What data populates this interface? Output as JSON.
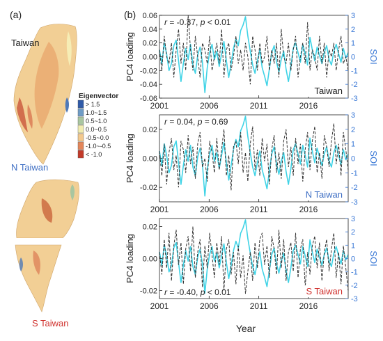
{
  "figure": {
    "panel_a_label": "(a)",
    "panel_b_label": "(b)",
    "legend_title": "Eigenvector",
    "legend_items": [
      {
        "label": "> 1.5",
        "color": "#2f5aa8"
      },
      {
        "label": "1.0~1.5",
        "color": "#6f9cc6"
      },
      {
        "label": "0.5~1.0",
        "color": "#a9c6a0"
      },
      {
        "label": "0.0~0.5",
        "color": "#f1ecb0"
      },
      {
        "label": "-0.5~0.0",
        "color": "#f3c98e"
      },
      {
        "label": "-1.0~-0.5",
        "color": "#e3865a"
      },
      {
        "label": "< -1.0",
        "color": "#c23a2a"
      }
    ],
    "maps": [
      {
        "label": "Taiwan",
        "label_color": "#222222"
      },
      {
        "label": "N Taiwan",
        "label_color": "#3f6fc4"
      },
      {
        "label": "S Taiwan",
        "label_color": "#d0312d"
      }
    ],
    "xlabel": "Year",
    "colors": {
      "pc4": "#333333",
      "soi": "#3fd3e6",
      "soi_axis": "#3a78d6"
    }
  },
  "chart_data": [
    {
      "type": "line",
      "title": "",
      "region_label": "Taiwan",
      "region_label_color": "#222222",
      "annotation": {
        "r": "r = -0.37, ",
        "p": "p < 0.01"
      },
      "ylabel": "PC4 loading",
      "y2label": "SOI",
      "ylim": [
        -0.06,
        0.06
      ],
      "yticks": [
        "0.06",
        "0.04",
        "0.02",
        "0.00",
        "-0.02",
        "-0.04",
        "-0.06"
      ],
      "y2lim": [
        -3,
        3
      ],
      "y2ticks": [
        "3",
        "2",
        "1",
        "0",
        "-1",
        "-2",
        "-3"
      ],
      "xticks": [
        "2001",
        "2006",
        "2011",
        "2016"
      ],
      "xlim": [
        2001,
        2020
      ],
      "series": [
        {
          "values": [
            0.01,
            -0.02,
            0.03,
            0.0,
            -0.01,
            0.02,
            -0.03,
            0.01,
            0.04,
            -0.01,
            0.02,
            -0.02,
            0.06,
            0.01,
            -0.02,
            0.03,
            0.0,
            -0.03,
            0.02,
            0.01,
            -0.01,
            0.03,
            -0.02,
            0.0,
            0.02,
            -0.01,
            0.04,
            -0.03,
            0.01,
            0.02,
            -0.02,
            0.0,
            0.03,
            -0.01,
            0.01,
            -0.02,
            0.02,
            0.0,
            -0.04,
            0.03,
            0.01,
            -0.02,
            0.02,
            -0.01,
            0.0,
            0.03,
            -0.02,
            0.01,
            -0.01,
            0.02,
            -0.03,
            0.04,
            0.0,
            -0.01,
            0.02,
            -0.02,
            0.01,
            0.03,
            -0.03,
            0.0,
            0.02,
            -0.01,
            0.05,
            -0.02,
            0.01,
            0.0,
            -0.02,
            0.03,
            -0.01,
            0.02,
            -0.03,
            0.01,
            0.0,
            0.02,
            -0.02,
            0.01,
            0.03,
            -0.01,
            0.0,
            -0.02
          ]
        },
        {
          "values": [
            0.5,
            -0.5,
            1.0,
            0.2,
            -1.0,
            -0.5,
            0.8,
            1.2,
            -0.3,
            -1.8,
            -0.5,
            0.6,
            -0.2,
            0.9,
            -0.6,
            -1.2,
            0.1,
            0.7,
            -0.4,
            -2.6,
            -0.8,
            0.3,
            0.9,
            -0.2,
            0.4,
            -0.7,
            0.2,
            1.1,
            -0.3,
            -1.5,
            -0.5,
            0.6,
            1.3,
            0.8,
            1.9,
            2.3,
            2.9,
            1.5,
            0.4,
            -0.6,
            -1.2,
            -0.3,
            0.5,
            -0.8,
            -1.4,
            -2.1,
            -0.9,
            0.3,
            0.8,
            -0.4,
            -1.1,
            -0.2,
            0.4,
            -0.9,
            -1.8,
            -0.7,
            0.6,
            1.0,
            0.3,
            -0.4,
            0.9,
            0.2,
            -0.6,
            1.4,
            0.5,
            -0.3,
            0.7,
            0.1,
            -0.5,
            0.3,
            0.8,
            -0.2,
            -0.6,
            0.4,
            0.9,
            0.2,
            -0.4,
            0.6,
            -0.1,
            0.3
          ]
        }
      ]
    },
    {
      "type": "line",
      "title": "",
      "region_label": "N Taiwan",
      "region_label_color": "#3f6fc4",
      "annotation": {
        "r": "r = 0.04, ",
        "p": "p = 0.69"
      },
      "ylabel": "PC4 loading",
      "y2label": "SOI",
      "ylim": [
        -0.03,
        0.03
      ],
      "yticks": [
        "0.02",
        "0.00",
        "-0.02"
      ],
      "y2lim": [
        -3,
        3
      ],
      "y2ticks": [
        "3",
        "2",
        "1",
        "0",
        "-1",
        "-2",
        "-3"
      ],
      "xticks": [
        "2001",
        "2006",
        "2011",
        "2016"
      ],
      "xlim": [
        2001,
        2020
      ],
      "series": [
        {
          "values": [
            0.005,
            -0.012,
            0.01,
            -0.018,
            0.004,
            0.014,
            -0.008,
            0.002,
            -0.02,
            0.012,
            0.006,
            -0.01,
            0.016,
            -0.004,
            0.008,
            -0.014,
            0.01,
            0.018,
            -0.006,
            0.0,
            -0.016,
            0.012,
            0.004,
            -0.01,
            0.014,
            -0.008,
            0.006,
            0.02,
            -0.012,
            0.002,
            -0.022,
            0.008,
            0.012,
            -0.004,
            0.018,
            -0.01,
            0.004,
            -0.016,
            0.01,
            0.022,
            -0.008,
            0.006,
            -0.012,
            0.014,
            -0.002,
            0.01,
            -0.018,
            0.006,
            0.016,
            -0.01,
            0.004,
            -0.014,
            0.012,
            0.02,
            -0.006,
            0.008,
            -0.012,
            0.014,
            -0.004,
            0.01,
            -0.016,
            0.006,
            0.018,
            -0.008,
            0.012,
            0.022,
            -0.01,
            0.004,
            -0.014,
            0.016,
            0.008,
            -0.006,
            0.012,
            0.024,
            -0.004,
            0.01,
            -0.012,
            0.018,
            0.006,
            -0.008
          ]
        },
        {
          "values": [
            0.5,
            -0.5,
            1.0,
            0.2,
            -1.0,
            -0.5,
            0.8,
            1.2,
            -0.3,
            -1.8,
            -0.5,
            0.6,
            -0.2,
            0.9,
            -0.6,
            -1.2,
            0.1,
            0.7,
            -0.4,
            -2.6,
            -0.8,
            0.3,
            0.9,
            -0.2,
            0.4,
            -0.7,
            0.2,
            1.1,
            -0.3,
            -1.5,
            -0.5,
            0.6,
            1.3,
            0.8,
            1.9,
            2.3,
            2.9,
            1.5,
            0.4,
            -0.6,
            -1.2,
            -0.3,
            0.5,
            -0.8,
            -1.4,
            -2.1,
            -0.9,
            0.3,
            0.8,
            -0.4,
            -1.1,
            -0.2,
            0.4,
            -0.9,
            -1.8,
            -0.7,
            0.6,
            1.0,
            0.3,
            -0.4,
            0.9,
            0.2,
            -0.6,
            1.4,
            0.5,
            -0.3,
            0.7,
            0.1,
            -0.5,
            0.3,
            0.8,
            -0.2,
            -0.6,
            0.4,
            0.9,
            0.2,
            -0.4,
            0.6,
            -0.1,
            0.3
          ]
        }
      ]
    },
    {
      "type": "line",
      "title": "",
      "region_label": "S Taiwan",
      "region_label_color": "#d0312d",
      "annotation": {
        "r": "r = -0.40, ",
        "p": "p < 0.01"
      },
      "ylabel": "PC4 loading",
      "y2label": "SOI",
      "ylim": [
        -0.025,
        0.025
      ],
      "yticks": [
        "0.02",
        "0.00",
        "-0.02"
      ],
      "y2lim": [
        -3,
        3
      ],
      "y2ticks": [
        "3",
        "2",
        "1",
        "0",
        "-1",
        "-2",
        "-3"
      ],
      "xticks": [
        "2001",
        "2006",
        "2011",
        "2016"
      ],
      "xlim": [
        2001,
        2020
      ],
      "series": [
        {
          "values": [
            0.004,
            -0.01,
            0.012,
            -0.006,
            0.016,
            -0.014,
            0.008,
            0.018,
            -0.004,
            0.01,
            -0.016,
            0.006,
            0.014,
            -0.008,
            0.02,
            -0.012,
            0.004,
            0.012,
            -0.018,
            0.008,
            -0.006,
            0.016,
            0.002,
            -0.012,
            0.01,
            -0.004,
            0.014,
            -0.02,
            0.006,
            0.012,
            -0.01,
            0.004,
            -0.016,
            0.008,
            -0.012,
            0.002,
            -0.022,
            -0.008,
            0.004,
            -0.014,
            0.01,
            -0.006,
            0.012,
            0.016,
            -0.004,
            0.008,
            -0.012,
            0.014,
            0.006,
            -0.01,
            0.018,
            -0.006,
            0.012,
            -0.014,
            0.004,
            0.01,
            -0.008,
            0.016,
            -0.012,
            0.006,
            0.012,
            -0.018,
            0.004,
            -0.01,
            0.008,
            0.014,
            -0.006,
            0.01,
            -0.014,
            0.004,
            0.012,
            -0.008,
            0.006,
            0.016,
            -0.012,
            0.004,
            -0.016,
            0.008,
            -0.006,
            -0.02
          ]
        },
        {
          "values": [
            0.5,
            -0.5,
            1.0,
            0.2,
            -1.0,
            -0.5,
            0.8,
            1.2,
            -0.3,
            -1.8,
            -0.5,
            0.6,
            -0.2,
            0.9,
            -0.6,
            -1.2,
            0.1,
            0.7,
            -0.4,
            -2.6,
            -0.8,
            0.3,
            0.9,
            -0.2,
            0.4,
            -0.7,
            0.2,
            1.1,
            -0.3,
            -1.5,
            -0.5,
            0.6,
            1.3,
            0.8,
            1.9,
            2.3,
            2.9,
            1.5,
            0.4,
            -0.6,
            -1.2,
            -0.3,
            0.5,
            -0.8,
            -1.4,
            -2.1,
            -0.9,
            0.3,
            0.8,
            -0.4,
            -1.1,
            -0.2,
            0.4,
            -0.9,
            -1.8,
            -0.7,
            0.6,
            1.0,
            0.3,
            -0.4,
            0.9,
            0.2,
            -0.6,
            1.4,
            0.5,
            -0.3,
            0.7,
            0.1,
            -0.5,
            0.3,
            0.8,
            -0.2,
            -0.6,
            0.4,
            0.9,
            0.2,
            -0.4,
            0.6,
            -0.1,
            0.3
          ]
        }
      ]
    }
  ]
}
